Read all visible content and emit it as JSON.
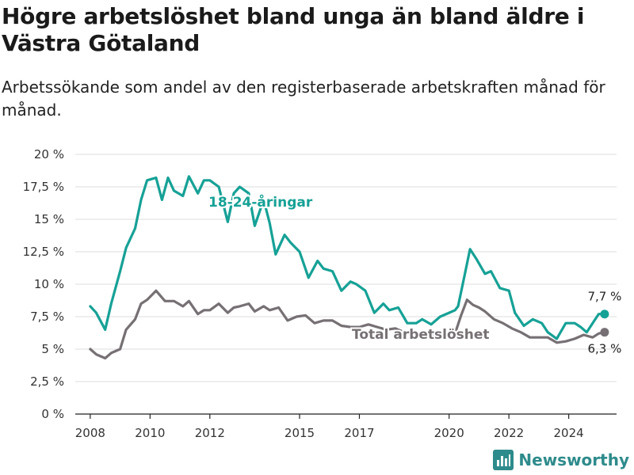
{
  "brand": {
    "name": "Newsworthy",
    "icon": "bar-chart-logo-icon",
    "color": "#2e8b8b"
  },
  "chart_data": {
    "type": "line",
    "title": "Högre arbetslöshet bland unga än bland äldre i Västra Götaland",
    "subtitle": "Arbetssökande som andel av den registerbaserade arbetskraften månad för månad.",
    "xlabel": "",
    "ylabel": "",
    "xlim": [
      2007.5,
      2025.6
    ],
    "ylim": [
      0,
      20
    ],
    "x_ticks": [
      2008,
      2010,
      2012,
      2015,
      2017,
      2020,
      2022,
      2024
    ],
    "x_tick_labels": [
      "2008",
      "2010",
      "2012",
      "2015",
      "2017",
      "2020",
      "2022",
      "2024"
    ],
    "y_ticks": [
      0,
      2.5,
      5,
      7.5,
      10,
      12.5,
      15,
      17.5,
      20
    ],
    "y_tick_labels": [
      "0 %",
      "2,5 %",
      "5 %",
      "7,5 %",
      "10 %",
      "12,5 %",
      "15 %",
      "17,5 %",
      "20 %"
    ],
    "grid": true,
    "legend": "inline labels",
    "series": [
      {
        "name": "18-24-åringar",
        "color": "#16a196",
        "end_label": "7,7 %",
        "x": [
          2008.0,
          2008.2,
          2008.5,
          2008.7,
          2009.0,
          2009.2,
          2009.5,
          2009.7,
          2009.9,
          2010.2,
          2010.4,
          2010.6,
          2010.8,
          2011.1,
          2011.3,
          2011.6,
          2011.8,
          2012.0,
          2012.3,
          2012.6,
          2012.8,
          2013.0,
          2013.3,
          2013.5,
          2013.8,
          2014.0,
          2014.2,
          2014.5,
          2014.7,
          2015.0,
          2015.3,
          2015.6,
          2015.8,
          2016.1,
          2016.4,
          2016.7,
          2016.9,
          2017.2,
          2017.5,
          2017.8,
          2018.0,
          2018.3,
          2018.6,
          2018.9,
          2019.1,
          2019.4,
          2019.7,
          2020.0,
          2020.2,
          2020.3,
          2020.5,
          2020.7,
          2020.9,
          2021.2,
          2021.4,
          2021.7,
          2022.0,
          2022.2,
          2022.5,
          2022.8,
          2023.1,
          2023.3,
          2023.6,
          2023.9,
          2024.2,
          2024.4,
          2024.6,
          2024.8,
          2025.0,
          2025.2
        ],
        "values": [
          8.3,
          7.8,
          6.5,
          8.5,
          11.0,
          12.8,
          14.3,
          16.5,
          18.0,
          18.2,
          16.5,
          18.2,
          17.2,
          16.8,
          18.3,
          17.0,
          18.0,
          18.0,
          17.5,
          14.8,
          17.0,
          17.5,
          17.0,
          14.5,
          16.5,
          14.7,
          12.3,
          13.8,
          13.2,
          12.5,
          10.5,
          11.8,
          11.2,
          11.0,
          9.5,
          10.2,
          10.0,
          9.5,
          7.8,
          8.5,
          8.0,
          8.2,
          7.0,
          7.0,
          7.3,
          6.9,
          7.5,
          7.8,
          8.0,
          8.3,
          10.5,
          12.7,
          12.0,
          10.8,
          11.0,
          9.7,
          9.5,
          7.8,
          6.8,
          7.3,
          7.0,
          6.3,
          5.8,
          7.0,
          7.0,
          6.7,
          6.3,
          7.0,
          7.7,
          7.7
        ]
      },
      {
        "name": "Total arbetslöshet",
        "color": "#767074",
        "end_label": "6,3 %",
        "x": [
          2008.0,
          2008.2,
          2008.5,
          2008.7,
          2009.0,
          2009.2,
          2009.5,
          2009.7,
          2009.9,
          2010.2,
          2010.5,
          2010.8,
          2011.1,
          2011.3,
          2011.6,
          2011.8,
          2012.0,
          2012.3,
          2012.6,
          2012.8,
          2013.0,
          2013.3,
          2013.5,
          2013.8,
          2014.0,
          2014.3,
          2014.6,
          2014.9,
          2015.2,
          2015.5,
          2015.8,
          2016.1,
          2016.4,
          2016.7,
          2017.0,
          2017.3,
          2017.6,
          2017.9,
          2018.2,
          2018.5,
          2018.8,
          2019.1,
          2019.4,
          2019.7,
          2020.0,
          2020.2,
          2020.4,
          2020.6,
          2020.8,
          2021.0,
          2021.2,
          2021.5,
          2021.8,
          2022.1,
          2022.4,
          2022.7,
          2023.0,
          2023.3,
          2023.6,
          2023.9,
          2024.2,
          2024.5,
          2024.8,
          2025.0,
          2025.2
        ],
        "values": [
          5.0,
          4.6,
          4.3,
          4.7,
          5.0,
          6.5,
          7.3,
          8.5,
          8.8,
          9.5,
          8.7,
          8.7,
          8.3,
          8.7,
          7.7,
          8.0,
          8.0,
          8.5,
          7.8,
          8.2,
          8.3,
          8.5,
          7.9,
          8.3,
          8.0,
          8.2,
          7.2,
          7.5,
          7.6,
          7.0,
          7.2,
          7.2,
          6.8,
          6.7,
          6.7,
          6.9,
          6.7,
          6.5,
          6.6,
          6.3,
          6.1,
          6.0,
          6.2,
          6.0,
          6.1,
          6.2,
          7.6,
          8.8,
          8.4,
          8.2,
          7.9,
          7.3,
          7.0,
          6.6,
          6.3,
          5.9,
          5.9,
          5.9,
          5.5,
          5.6,
          5.8,
          6.1,
          5.9,
          6.2,
          6.3
        ]
      }
    ]
  }
}
